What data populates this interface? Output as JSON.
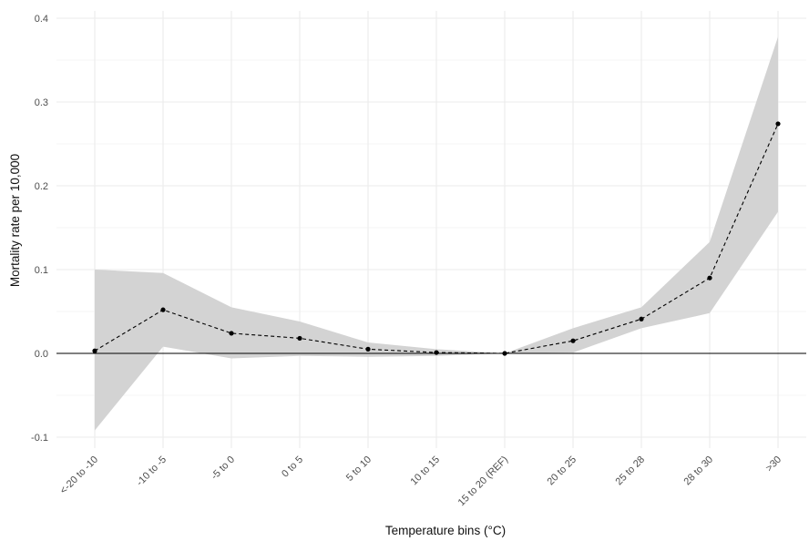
{
  "chart_data": {
    "type": "line",
    "xlabel": "Temperature bins (°C)",
    "ylabel": "Mortality rate per 10,000",
    "categories": [
      "<-20 to -10",
      "-10 to -5",
      "-5 to 0",
      "0 to 5",
      "5 to 10",
      "10 to 15",
      "15 to 20 (REF)",
      "20 to 25",
      "25 to 28",
      "28 to 30",
      ">30"
    ],
    "series": [
      {
        "values": [
          0.003,
          0.052,
          0.024,
          0.018,
          0.005,
          0.001,
          0.0,
          0.015,
          0.041,
          0.09,
          0.274
        ],
        "lower": [
          -0.092,
          0.008,
          -0.006,
          -0.003,
          -0.004,
          -0.003,
          0.0,
          0.001,
          0.03,
          0.048,
          0.169
        ],
        "upper": [
          0.1,
          0.096,
          0.055,
          0.038,
          0.013,
          0.005,
          0.0,
          0.03,
          0.055,
          0.133,
          0.378
        ]
      }
    ],
    "yticks": [
      "-0.1",
      "0.0",
      "0.1",
      "0.2",
      "0.3",
      "0.4"
    ],
    "ylim": [
      -0.11,
      0.4
    ],
    "reference_line_y": 0.0,
    "grid": true,
    "legend": "none",
    "colors": {
      "ribbon": "#d3d3d3",
      "line": "#000000",
      "points": "#000000",
      "grid_major": "#ebebeb",
      "grid_minor": "#f5f5f5",
      "text": "#4d4d4d"
    }
  }
}
